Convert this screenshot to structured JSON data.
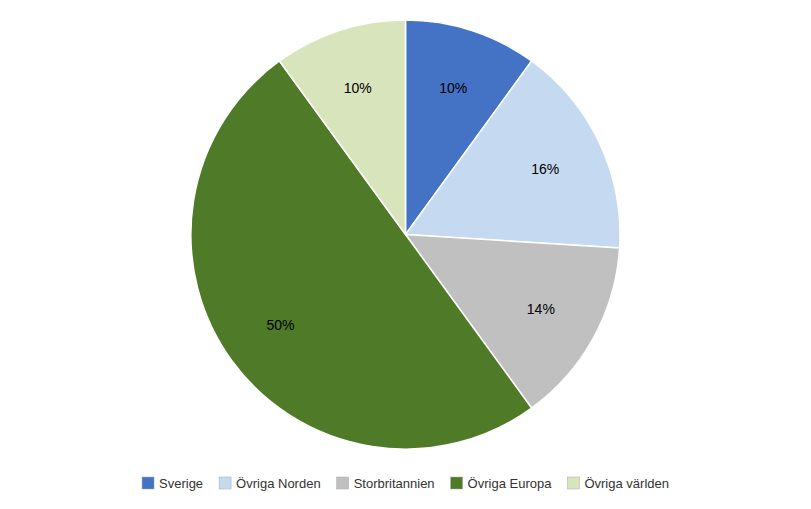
{
  "chart_data": {
    "type": "pie",
    "categories": [
      "Sverige",
      "Övriga Norden",
      "Storbritannien",
      "Övriga Europa",
      "Övriga världen"
    ],
    "values": [
      10,
      16,
      14,
      50,
      10
    ],
    "value_labels": [
      "10%",
      "16%",
      "14%",
      "50%",
      "10%"
    ],
    "colors": [
      "#4472C4",
      "#C5D9F1",
      "#C0C0C0",
      "#4F7A28",
      "#D8E4BC"
    ],
    "data_labels": true,
    "legend": "bottom"
  }
}
